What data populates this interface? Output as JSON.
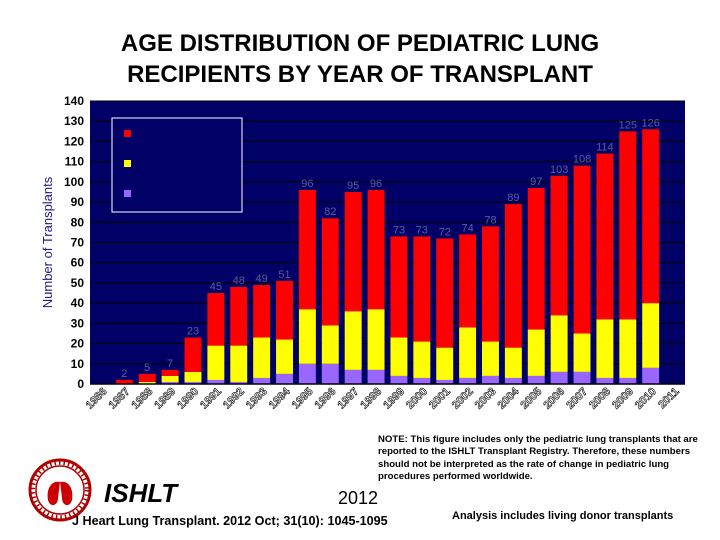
{
  "header": {
    "title_line1": "AGE DISTRIBUTION OF PEDIATRIC LUNG",
    "title_line2": "RECIPIENTS BY YEAR OF TRANSPLANT"
  },
  "chart_data": {
    "type": "bar",
    "stacked": true,
    "ylabel": "Number of Transplants",
    "ylim": [
      0,
      140
    ],
    "yticks": [
      0,
      10,
      20,
      30,
      40,
      50,
      60,
      70,
      80,
      90,
      100,
      110,
      120,
      130,
      140
    ],
    "categories": [
      "1986",
      "1987",
      "1988",
      "1989",
      "1990",
      "1991",
      "1992",
      "1993",
      "1994",
      "1995",
      "1996",
      "1997",
      "1998",
      "1999",
      "2000",
      "2001",
      "2002",
      "2003",
      "2004",
      "2005",
      "2006",
      "2007",
      "2008",
      "2009",
      "2010",
      "2011"
    ],
    "totals": [
      0,
      2,
      5,
      7,
      23,
      45,
      48,
      49,
      51,
      96,
      82,
      95,
      96,
      73,
      73,
      72,
      74,
      78,
      89,
      97,
      103,
      108,
      114,
      125,
      126,
      0
    ],
    "series": [
      {
        "color": "#ff0000",
        "values": [
          0,
          2,
          4,
          3,
          17,
          26,
          29,
          26,
          29,
          59,
          53,
          59,
          59,
          50,
          52,
          54,
          46,
          57,
          71,
          70,
          69,
          83,
          82,
          93,
          86,
          0
        ]
      },
      {
        "color": "#ffff00",
        "values": [
          0,
          0,
          1,
          3,
          5,
          17,
          18,
          20,
          17,
          27,
          19,
          29,
          30,
          19,
          18,
          16,
          25,
          17,
          15,
          23,
          28,
          19,
          29,
          29,
          32,
          0
        ]
      },
      {
        "color": "#9966ff",
        "values": [
          0,
          0,
          0,
          1,
          1,
          2,
          1,
          3,
          5,
          10,
          10,
          7,
          7,
          4,
          3,
          2,
          3,
          4,
          3,
          4,
          6,
          6,
          3,
          3,
          8,
          0
        ]
      }
    ],
    "grid": true,
    "legend": "top-left"
  },
  "footer": {
    "note": "NOTE: This figure includes only the pediatric lung transplants that are reported to the ISHLT Transplant Registry. Therefore, these numbers should not be interpreted as the rate of change in pediatric lung procedures performed worldwide.",
    "org": "ISHLT",
    "year": "2012",
    "citation": "J Heart Lung Transplant. 2012 Oct; 31(10): 1045-1095",
    "living_note": "Analysis includes living donor transplants"
  },
  "colors": {
    "plot_background": "#000066",
    "gridline": "#000000",
    "axis_text": "#000000"
  }
}
